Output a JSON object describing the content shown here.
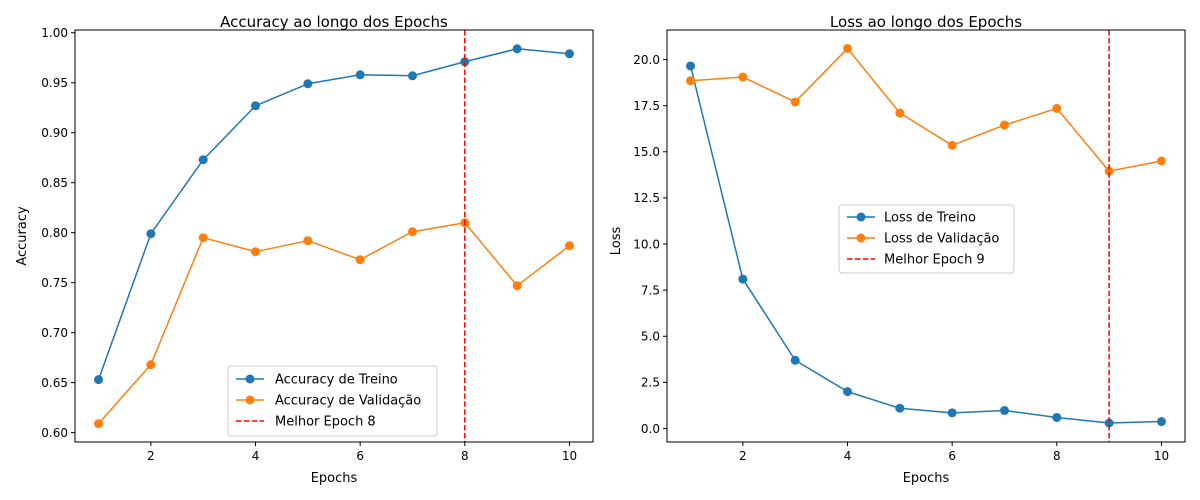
{
  "chart_data": [
    {
      "type": "line",
      "title": "Accuracy ao longo dos Epochs",
      "xlabel": "Epochs",
      "ylabel": "Accuracy",
      "xlim": [
        0.55,
        10.45
      ],
      "ylim": [
        0.5906,
        1.0028
      ],
      "xticks": [
        2,
        4,
        6,
        8,
        10
      ],
      "xtick_labels": [
        "2",
        "4",
        "6",
        "8",
        "10"
      ],
      "yticks": [
        0.6,
        0.65,
        0.7,
        0.75,
        0.8,
        0.85,
        0.9,
        0.95,
        1.0
      ],
      "ytick_labels": [
        "0.60",
        "0.65",
        "0.70",
        "0.75",
        "0.80",
        "0.85",
        "0.90",
        "0.95",
        "1.00"
      ],
      "x": [
        1,
        2,
        3,
        4,
        5,
        6,
        7,
        8,
        9,
        10
      ],
      "series": [
        {
          "name": "Accuracy de Treino",
          "color": "#1f77b4",
          "values": [
            0.653,
            0.799,
            0.873,
            0.927,
            0.949,
            0.958,
            0.957,
            0.971,
            0.984,
            0.979
          ]
        },
        {
          "name": "Accuracy de Validação",
          "color": "#ff7f0e",
          "values": [
            0.609,
            0.668,
            0.795,
            0.781,
            0.792,
            0.773,
            0.801,
            0.81,
            0.747,
            0.787
          ]
        }
      ],
      "vline": {
        "name": "Melhor Epoch 8",
        "x": 8,
        "color": "#ff0000",
        "style": "dashed"
      },
      "legend_position": "lower-center",
      "grid": false
    },
    {
      "type": "line",
      "title": "Loss ao longo dos Epochs",
      "xlabel": "Epochs",
      "ylabel": "Loss",
      "xlim": [
        0.55,
        10.45
      ],
      "ylim": [
        -0.73,
        21.6
      ],
      "xticks": [
        2,
        4,
        6,
        8,
        10
      ],
      "xtick_labels": [
        "2",
        "4",
        "6",
        "8",
        "10"
      ],
      "yticks": [
        0.0,
        2.5,
        5.0,
        7.5,
        10.0,
        12.5,
        15.0,
        17.5,
        20.0
      ],
      "ytick_labels": [
        "0.0",
        "2.5",
        "5.0",
        "7.5",
        "10.0",
        "12.5",
        "15.0",
        "17.5",
        "20.0"
      ],
      "x": [
        1,
        2,
        3,
        4,
        5,
        6,
        7,
        8,
        9,
        10
      ],
      "series": [
        {
          "name": "Loss de Treino",
          "color": "#1f77b4",
          "values": [
            19.65,
            8.1,
            3.7,
            2.0,
            1.1,
            0.85,
            0.98,
            0.6,
            0.3,
            0.38
          ]
        },
        {
          "name": "Loss de Validação",
          "color": "#ff7f0e",
          "values": [
            18.85,
            19.05,
            17.7,
            20.6,
            17.1,
            15.35,
            16.45,
            17.35,
            13.95,
            14.5
          ]
        }
      ],
      "vline": {
        "name": "Melhor Epoch 9",
        "x": 9,
        "color": "#ff0000",
        "style": "dashed"
      },
      "legend_position": "center",
      "grid": false
    }
  ]
}
